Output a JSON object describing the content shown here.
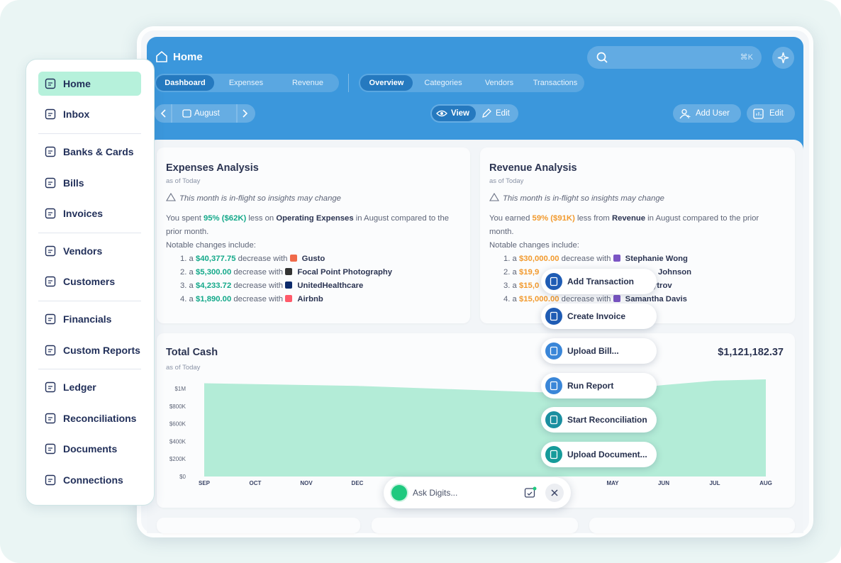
{
  "sidebar": {
    "items": [
      "Home",
      "Inbox",
      "Banks & Cards",
      "Bills",
      "Invoices",
      "Vendors",
      "Customers",
      "Financials",
      "Custom Reports",
      "Ledger",
      "Reconciliations",
      "Documents",
      "Connections"
    ]
  },
  "header": {
    "title": "Home",
    "search_hint": "⌘K",
    "primary_tabs": [
      "Dashboard",
      "Expenses",
      "Revenue"
    ],
    "secondary_tabs": [
      "Overview",
      "Categories",
      "Vendors",
      "Transactions"
    ],
    "month": "August",
    "view": "View",
    "edit": "Edit",
    "add_user": "Add User",
    "edit_layout": "Edit"
  },
  "expenses_card": {
    "title": "Expenses Analysis",
    "subtitle": "as of Today",
    "notice": "This month is in-flight so insights may change",
    "summary": {
      "lead": "You spent",
      "percent": "95%",
      "amount": "($62K)",
      "middle": "less on",
      "category": "Operating Expenses",
      "tail": "in August compared to the prior month."
    },
    "changes_heading": "Notable changes include:",
    "changes": [
      {
        "label": "1. a",
        "amount": "$40,377.75",
        "text": "decrease with",
        "name": "Gusto"
      },
      {
        "label": "2. a",
        "amount": "$5,300.00",
        "text": "decrease with",
        "name": "Focal Point Photography"
      },
      {
        "label": "3. a",
        "amount": "$4,233.72",
        "text": "decrease with",
        "name": "UnitedHealthcare"
      },
      {
        "label": "4. a",
        "amount": "$1,890.00",
        "text": "decrease with",
        "name": "Airbnb"
      }
    ]
  },
  "revenue_card": {
    "title": "Revenue Analysis",
    "subtitle": "as of Today",
    "notice": "This month is in-flight so insights may change",
    "summary": {
      "lead": "You earned",
      "percent": "59%",
      "amount": "($91K)",
      "middle": "less from",
      "category": "Revenue",
      "tail": "in August compared to the prior month."
    },
    "changes_heading": "Notable changes include:",
    "changes": [
      {
        "label": "1. a",
        "amount": "$30,000.00",
        "text": "decrease with",
        "name": "Stephanie Wong"
      },
      {
        "label": "2. a",
        "amount": "$19,9",
        "name": "Johnson"
      },
      {
        "label": "3. a",
        "amount": "$15,0",
        "name": "ytrov"
      },
      {
        "label": "4. a",
        "amount": "$15,000.00",
        "text": "decrease with",
        "name": "Samantha Davis"
      }
    ]
  },
  "chart_data": {
    "type": "area",
    "title": "Total Cash",
    "subtitle": "as of Today",
    "current_value": "$1,121,182.37",
    "color": "#b3ecd7",
    "categories": [
      "SEP",
      "OCT",
      "NOV",
      "DEC",
      null,
      null,
      null,
      null,
      "MAY",
      "JUN",
      "JUL",
      "AUG"
    ],
    "values": [
      1060000,
      1050000,
      1040000,
      1030000,
      1010000,
      990000,
      970000,
      950000,
      980000,
      1040000,
      1090000,
      1105000
    ],
    "ylim": [
      0,
      1000000
    ],
    "yticks": [
      {
        "value": 0,
        "label": "$0"
      },
      {
        "value": 200000,
        "label": "$200K"
      },
      {
        "value": 400000,
        "label": "$400K"
      },
      {
        "value": 600000,
        "label": "$600K"
      },
      {
        "value": 800000,
        "label": "$800K"
      },
      {
        "value": 1000000,
        "label": "$1M"
      }
    ],
    "grid": false
  },
  "quick_actions": [
    "Add Transaction",
    "Create Invoice",
    "Upload Bill...",
    "Run Report",
    "Start Reconciliation",
    "Upload Document..."
  ],
  "assistant": {
    "placeholder": "Ask Digits..."
  }
}
